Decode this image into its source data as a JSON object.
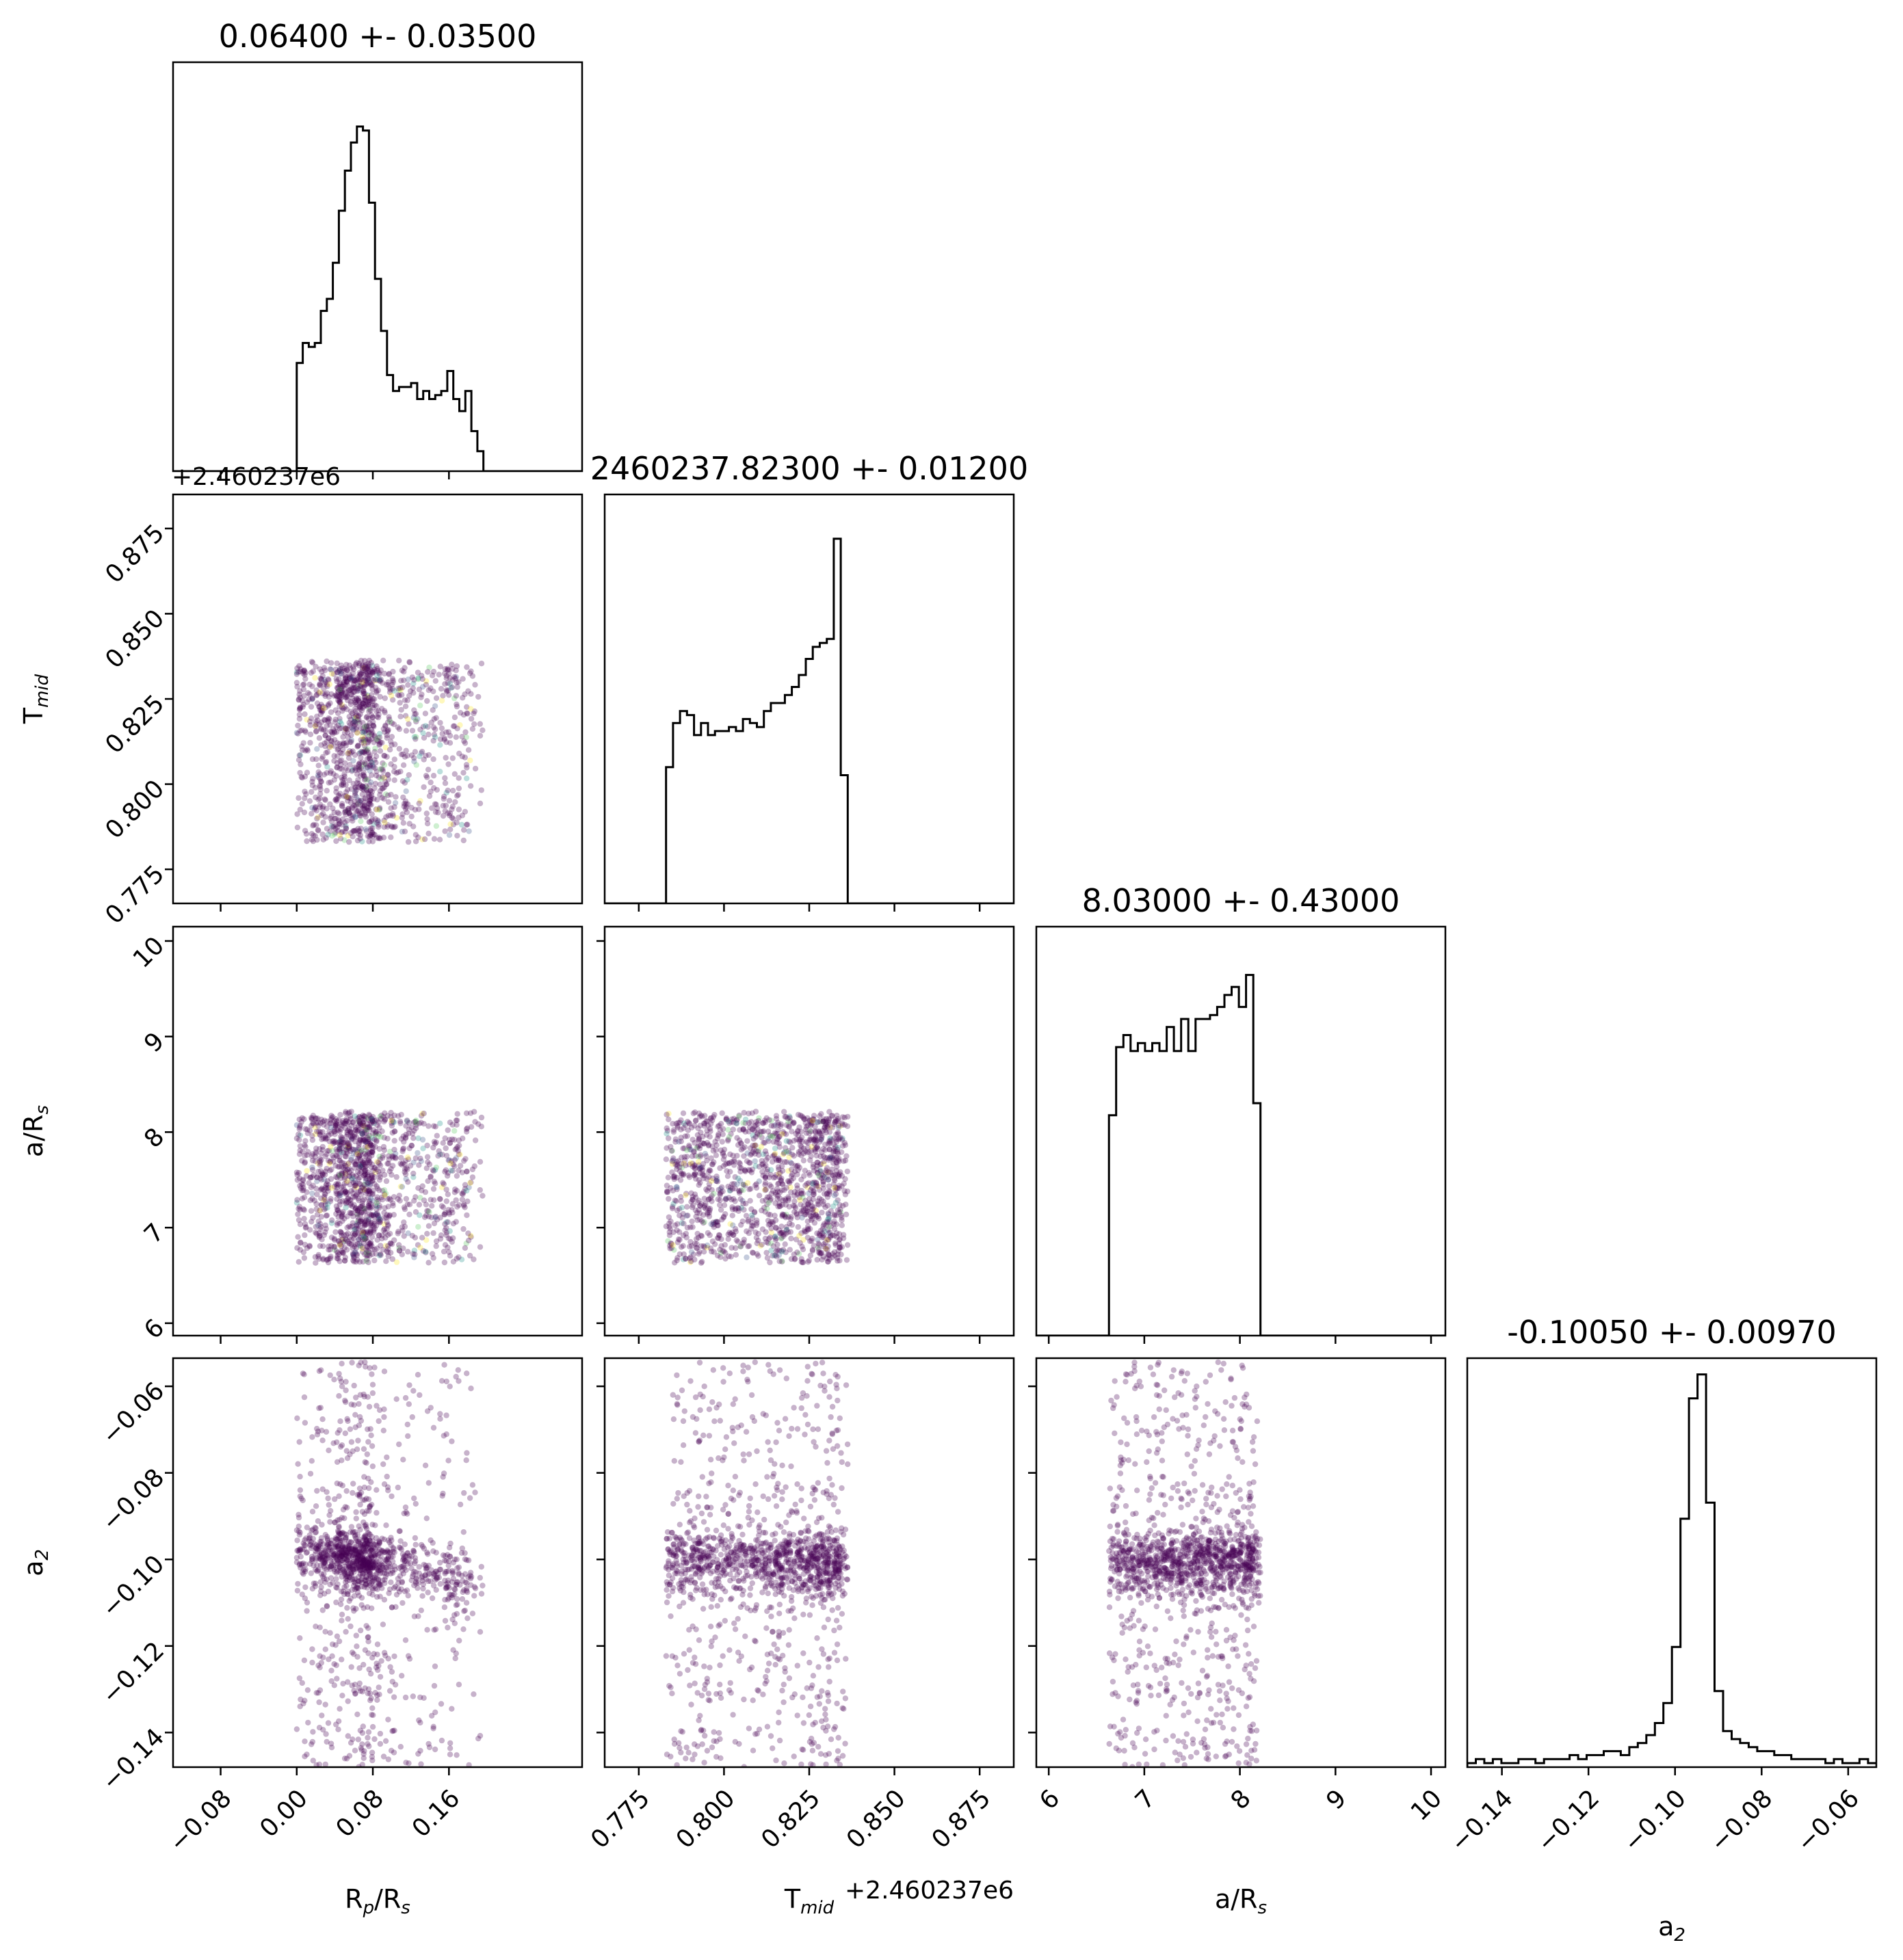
{
  "chart_data": {
    "type": "corner",
    "parameters": [
      {
        "key": "rp",
        "label": "R",
        "label_sub": "p",
        "label_suffix": "/R",
        "label_sub2": "s",
        "title": "0.06400 +- 0.03500",
        "range": [
          -0.13,
          0.3
        ],
        "ticks": [
          -0.08,
          0.0,
          0.08,
          0.16
        ],
        "tick_labels": [
          "−0.08",
          "0.00",
          "0.08",
          "0.16"
        ],
        "offset": "",
        "sample_range": [
          0.0,
          0.19
        ],
        "hist": {
          "edges_start": 0.0,
          "bin_width": 0.00633,
          "counts": [
            0.27,
            0.32,
            0.31,
            0.32,
            0.4,
            0.43,
            0.52,
            0.65,
            0.75,
            0.82,
            0.86,
            0.85,
            0.67,
            0.48,
            0.35,
            0.24,
            0.2,
            0.21,
            0.21,
            0.22,
            0.18,
            0.2,
            0.18,
            0.19,
            0.2,
            0.25,
            0.18,
            0.15,
            0.2,
            0.1,
            0.05
          ]
        }
      },
      {
        "key": "tmid",
        "label": "T",
        "label_sub": "mid",
        "label_suffix": "",
        "label_sub2": "",
        "title": "2460237.82300 +- 0.01200",
        "range": [
          0.765,
          0.885
        ],
        "ticks": [
          0.775,
          0.8,
          0.825,
          0.85,
          0.875
        ],
        "tick_labels": [
          "0.775",
          "0.800",
          "0.825",
          "0.850",
          "0.875"
        ],
        "offset": "+2.460237e6",
        "sample_range": [
          0.783,
          0.824
        ],
        "hist": {
          "edges_start": 0.783,
          "bin_width": 0.00205,
          "counts": [
            0.34,
            0.45,
            0.48,
            0.47,
            0.42,
            0.45,
            0.42,
            0.43,
            0.43,
            0.44,
            0.43,
            0.46,
            0.45,
            0.44,
            0.48,
            0.5,
            0.5,
            0.52,
            0.54,
            0.57,
            0.61,
            0.64,
            0.65,
            0.66,
            0.91,
            0.32
          ]
        }
      },
      {
        "key": "ars",
        "label": "a/R",
        "label_sub": "s",
        "label_suffix": "",
        "label_sub2": "",
        "title": "8.03000 +- 0.43000",
        "range": [
          5.87,
          10.15
        ],
        "ticks": [
          6,
          7,
          8,
          9,
          10
        ],
        "tick_labels": [
          "6",
          "7",
          "8",
          "9",
          "10"
        ],
        "offset": "",
        "sample_range": [
          6.63,
          8.14
        ],
        "hist": {
          "edges_start": 6.63,
          "bin_width": 0.0755,
          "counts": [
            0.55,
            0.72,
            0.75,
            0.71,
            0.73,
            0.71,
            0.73,
            0.71,
            0.77,
            0.71,
            0.79,
            0.71,
            0.79,
            0.79,
            0.8,
            0.82,
            0.85,
            0.87,
            0.82,
            0.9,
            0.58
          ]
        }
      },
      {
        "key": "a2",
        "label": "a",
        "label_sub": "2",
        "label_suffix": "",
        "label_sub2": "",
        "title": "-0.10050 +- 0.00970",
        "range": [
          -0.148,
          -0.0535
        ],
        "ticks": [
          -0.14,
          -0.12,
          -0.1,
          -0.08,
          -0.06
        ],
        "tick_labels": [
          "−0.14",
          "−0.12",
          "−0.10",
          "−0.08",
          "−0.06"
        ],
        "offset": "",
        "sample_range": [
          -0.148,
          -0.0535
        ],
        "hist": {
          "edges_start": -0.148,
          "bin_width": 0.00197,
          "counts": [
            0.01,
            0.02,
            0.01,
            0.02,
            0.01,
            0.01,
            0.02,
            0.02,
            0.01,
            0.02,
            0.02,
            0.02,
            0.03,
            0.02,
            0.03,
            0.03,
            0.04,
            0.04,
            0.03,
            0.05,
            0.06,
            0.08,
            0.11,
            0.16,
            0.3,
            0.62,
            0.92,
            0.98,
            0.66,
            0.19,
            0.09,
            0.07,
            0.06,
            0.05,
            0.04,
            0.04,
            0.03,
            0.03,
            0.02,
            0.02,
            0.02,
            0.02,
            0.01,
            0.02,
            0.01,
            0.01,
            0.02,
            0.01
          ]
        }
      }
    ],
    "left_offset_label": "+2.460237e6",
    "scatter": {
      "color": "#440154",
      "accent_colors": [
        "#440154",
        "#3b528b",
        "#21918c",
        "#5ec962",
        "#fde725"
      ],
      "point_opacity": 0.3,
      "a2_core_mean": -0.0995,
      "a2_core_sd": 0.0035,
      "core_fraction": 0.6
    },
    "grid": false
  }
}
